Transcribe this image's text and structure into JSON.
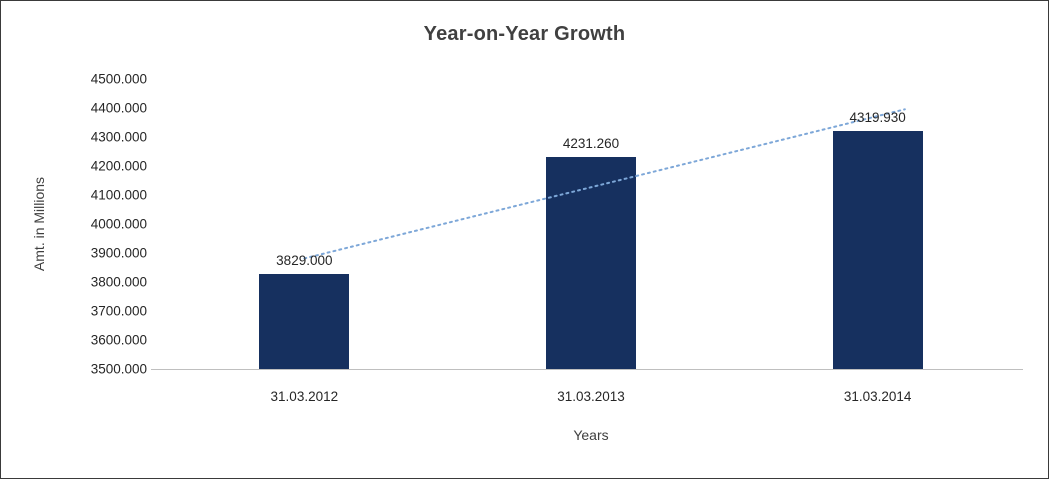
{
  "chart_data": {
    "type": "bar",
    "title": "Year-on-Year Growth",
    "xlabel": "Years",
    "ylabel": "Amt. in Millions",
    "categories": [
      "31.03.2012",
      "31.03.2013",
      "31.03.2014"
    ],
    "values": [
      3829.0,
      4231.26,
      4319.93
    ],
    "value_labels": [
      "3829.000",
      "4231.260",
      "4319.930"
    ],
    "ylim": [
      3500,
      4500
    ],
    "ytick_step": 100,
    "ytick_labels": [
      "3500.000",
      "3600.000",
      "3700.000",
      "3800.000",
      "3900.000",
      "4000.000",
      "4100.000",
      "4200.000",
      "4300.000",
      "4400.000",
      "4500.000"
    ],
    "grid": false,
    "legend": "none",
    "bar_color": "#16305f",
    "trendline": {
      "type": "linear",
      "color": "#7da7d8",
      "style": "dotted"
    }
  }
}
